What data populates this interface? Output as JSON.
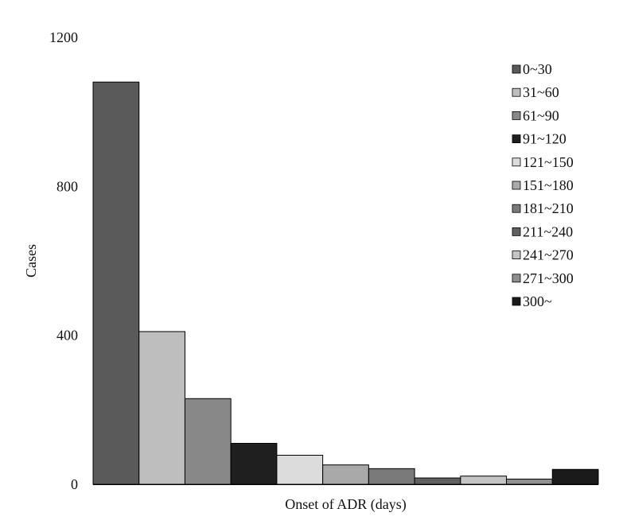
{
  "chart_data": {
    "type": "bar",
    "title": "",
    "xlabel": "Onset of ADR (days)",
    "ylabel": "Cases",
    "ylim": [
      0,
      1200
    ],
    "yticks": [
      0,
      400,
      800,
      1200
    ],
    "grid": false,
    "legend_position": "top-right",
    "categories": [
      "0~30",
      "31~60",
      "61~90",
      "91~120",
      "121~150",
      "151~180",
      "181~210",
      "211~240",
      "241~270",
      "271~300",
      "300~"
    ],
    "values": [
      1080,
      410,
      230,
      110,
      78,
      52,
      42,
      17,
      22,
      14,
      40
    ],
    "colors": [
      "#5a5a5a",
      "#bebebe",
      "#888888",
      "#1f1f1f",
      "#dcdcdc",
      "#a9a9a9",
      "#7a7a7a",
      "#606060",
      "#c4c4c4",
      "#8f8f8f",
      "#1a1a1a"
    ]
  }
}
